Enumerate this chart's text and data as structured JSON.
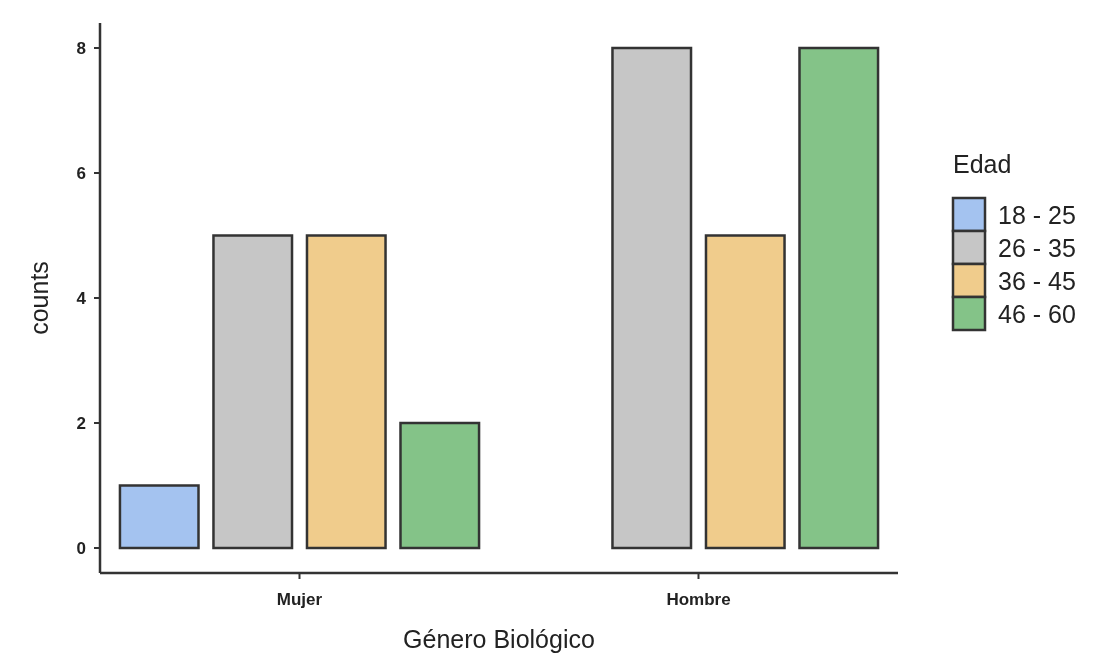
{
  "chart_data": {
    "type": "bar",
    "xlabel": "Género Biológico",
    "ylabel": "counts",
    "legend_title": "Edad",
    "categories": [
      "Mujer",
      "Hombre"
    ],
    "series": [
      {
        "name": "18 - 25",
        "color": "#a4c3f0",
        "values": [
          1,
          0
        ]
      },
      {
        "name": "26 - 35",
        "color": "#c6c6c6",
        "values": [
          5,
          8
        ]
      },
      {
        "name": "36 - 45",
        "color": "#f0cc8c",
        "values": [
          5,
          5
        ]
      },
      {
        "name": "46 - 60",
        "color": "#84c388",
        "values": [
          2,
          8
        ]
      }
    ],
    "ylim": [
      -0.4,
      8.4
    ],
    "yticks": [
      0,
      2,
      4,
      6,
      8
    ],
    "grid": false,
    "legend": "right"
  }
}
